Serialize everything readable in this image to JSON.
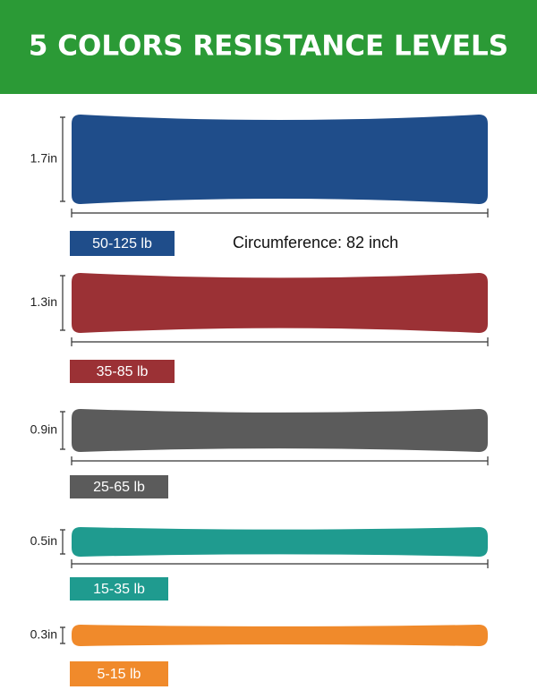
{
  "header": {
    "title": "5 COLORS RESISTANCE LEVELS"
  },
  "circumference": "Circumference: 82 inch",
  "bands": [
    {
      "width": "1.7in",
      "resistance": "50-125 lb",
      "color": "#1f4d8a"
    },
    {
      "width": "1.3in",
      "resistance": "35-85 lb",
      "color": "#9b3135"
    },
    {
      "width": "0.9in",
      "resistance": "25-65 lb",
      "color": "#5b5b5b"
    },
    {
      "width": "0.5in",
      "resistance": "15-35 lb",
      "color": "#1f9b8f"
    },
    {
      "width": "0.3in",
      "resistance": "5-15 lb",
      "color": "#f08a2b"
    }
  ]
}
